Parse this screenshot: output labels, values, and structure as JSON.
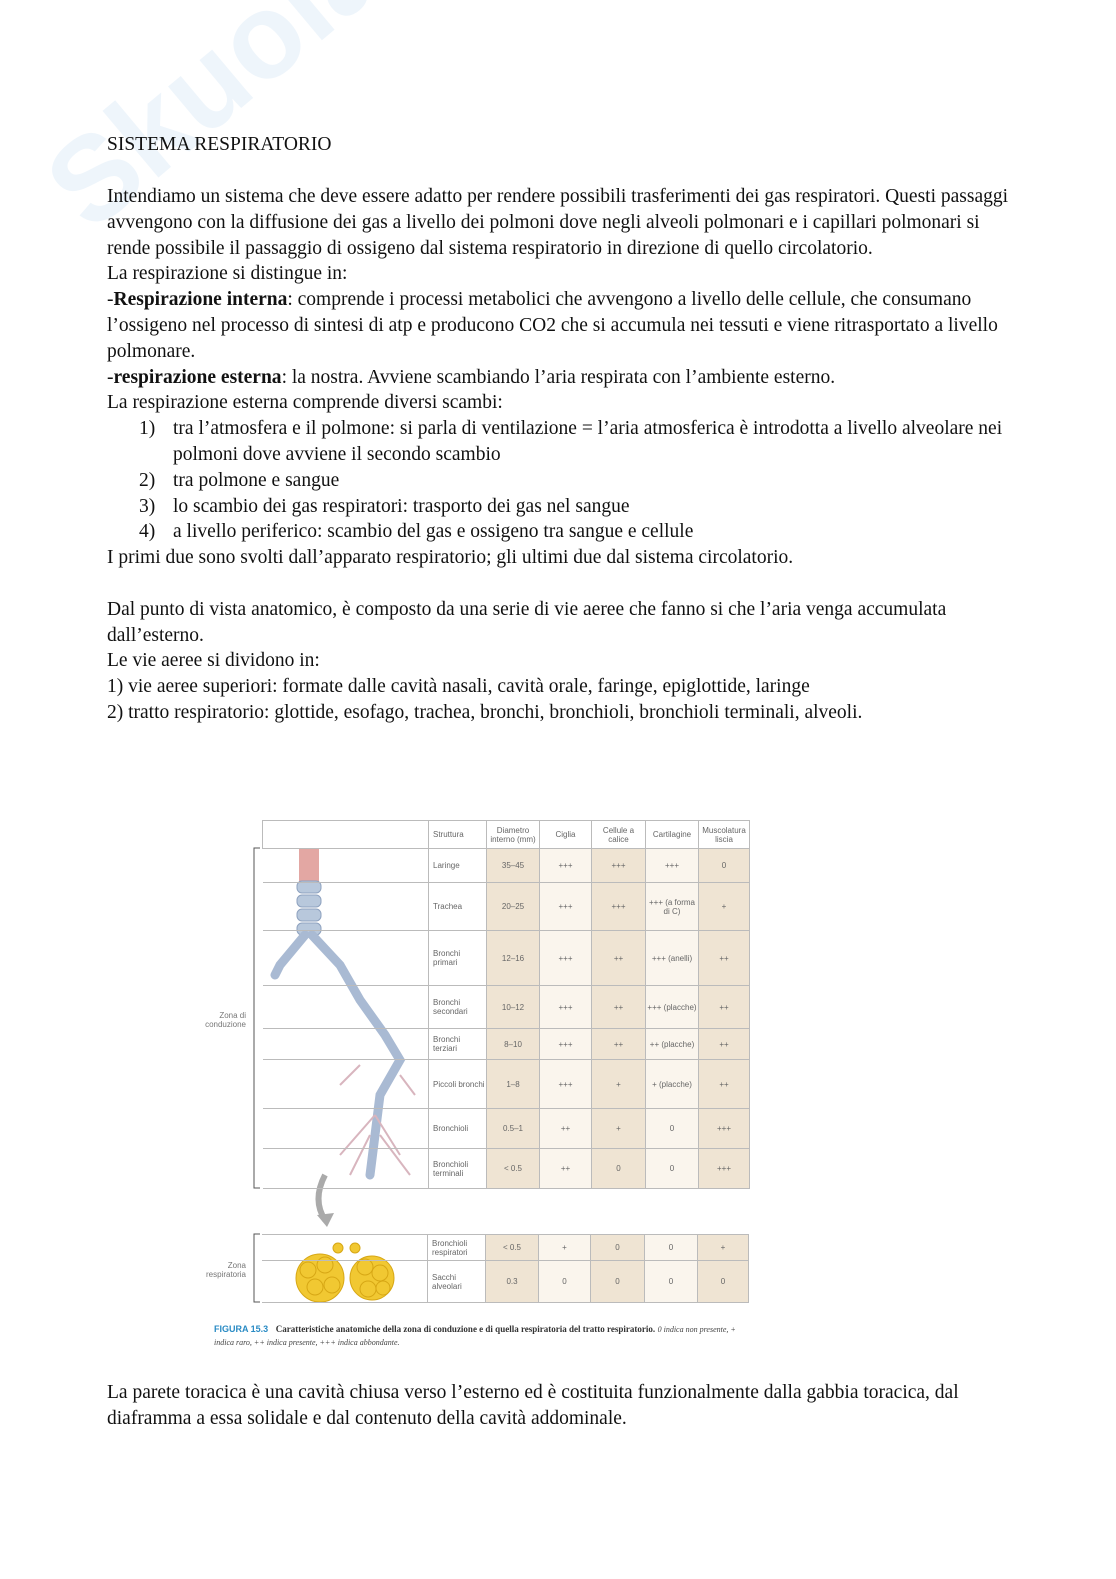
{
  "watermark": "Skuola.net",
  "title": "SISTEMA RESPIRATORIO",
  "intro": [
    "Intendiamo un sistema che deve essere adatto per rendere possibili trasferimenti dei gas respiratori. Questi passaggi avvengono con la diffusione dei gas a livello dei polmoni dove negli alveoli polmonari e i capillari polmonari si rende possibile il passaggio di ossigeno dal sistema respiratorio in direzione di quello circolatorio.",
    "La respirazione si distingue in:"
  ],
  "resp_interna": {
    "term": "Respirazione interna",
    "text": ": comprende i processi metabolici che avvengono a livello delle cellule, che consumano l’ossigeno nel processo di sintesi di atp e producono CO2 che si accumula nei tessuti e viene ritrasportato a livello polmonare."
  },
  "resp_esterna": {
    "term": "respirazione esterna",
    "text": ": la nostra. Avviene scambiando l’aria respirata con l’ambiente esterno."
  },
  "scambi_intro": "La respirazione esterna comprende diversi scambi:",
  "scambi": [
    {
      "n": "1)",
      "text": "tra l’atmosfera e il polmone: si parla di ventilazione = l’aria atmosferica è introdotta a livello alveolare nei polmoni dove avviene il secondo scambio"
    },
    {
      "n": "2)",
      "text": "tra polmone e sangue"
    },
    {
      "n": "3)",
      "text": "lo scambio dei gas respiratori: trasporto dei gas nel sangue"
    },
    {
      "n": "4)",
      "text": "a livello periferico: scambio del gas e ossigeno tra sangue e cellule"
    }
  ],
  "scambi_outro": "I primi due sono svolti dall’apparato respiratorio; gli ultimi due dal sistema circolatorio.",
  "anatomia": [
    "Dal punto di vista anatomico, è composto da una serie di vie aeree che fanno si che l’aria venga accumulata dall’esterno.",
    "Le vie aeree si dividono in:",
    "1) vie aeree superiori: formate dalle cavità nasali, cavità orale, faringe, epiglottide, laringe",
    "2) tratto respiratorio: glottide, esofago, trachea, bronchi, bronchioli, bronchioli terminali, alveoli."
  ],
  "figure": {
    "headers": [
      "Struttura",
      "Diametro interno (mm)",
      "Ciglia",
      "Cellule a calice",
      "Cartilagine",
      "Muscolatura liscia"
    ],
    "zona_conduzione": "Zona di conduzione",
    "zona_respiratoria": "Zona respiratoria",
    "conduction_rows": [
      [
        "Laringe",
        "35–45",
        "+++",
        "+++",
        "+++",
        "0"
      ],
      [
        "Trachea",
        "20–25",
        "+++",
        "+++",
        "+++ (a forma di C)",
        "+"
      ],
      [
        "Bronchi primari",
        "12–16",
        "+++",
        "++",
        "+++ (anelli)",
        "++"
      ],
      [
        "Bronchi secondari",
        "10–12",
        "+++",
        "++",
        "+++ (placche)",
        "++"
      ],
      [
        "Bronchi terziari",
        "8–10",
        "+++",
        "++",
        "++ (placche)",
        "++"
      ],
      [
        "Piccoli bronchi",
        "1–8",
        "+++",
        "+",
        "+ (placche)",
        "++"
      ],
      [
        "Bronchioli",
        "0.5–1",
        "++",
        "+",
        "0",
        "+++"
      ],
      [
        "Bronchioli terminali",
        "< 0.5",
        "++",
        "0",
        "0",
        "+++"
      ]
    ],
    "respiratory_rows": [
      [
        "Bronchioli respiratori",
        "< 0.5",
        "+",
        "0",
        "0",
        "+"
      ],
      [
        "Sacchi alveolari",
        "0.3",
        "0",
        "0",
        "0",
        "0"
      ]
    ],
    "caption_number": "FIGURA 15.3",
    "caption_title": "Caratteristiche anatomiche della zona di conduzione e di quella respiratoria del tratto respiratorio.",
    "caption_legend": "0 indica non presente, + indica raro, ++ indica presente, +++ indica abbondante."
  },
  "parete": "La parete toracica è una cavità chiusa verso l’esterno ed è costituita funzionalmente dalla gabbia toracica, dal diaframma a essa solidale e dal contenuto della cavità addominale."
}
